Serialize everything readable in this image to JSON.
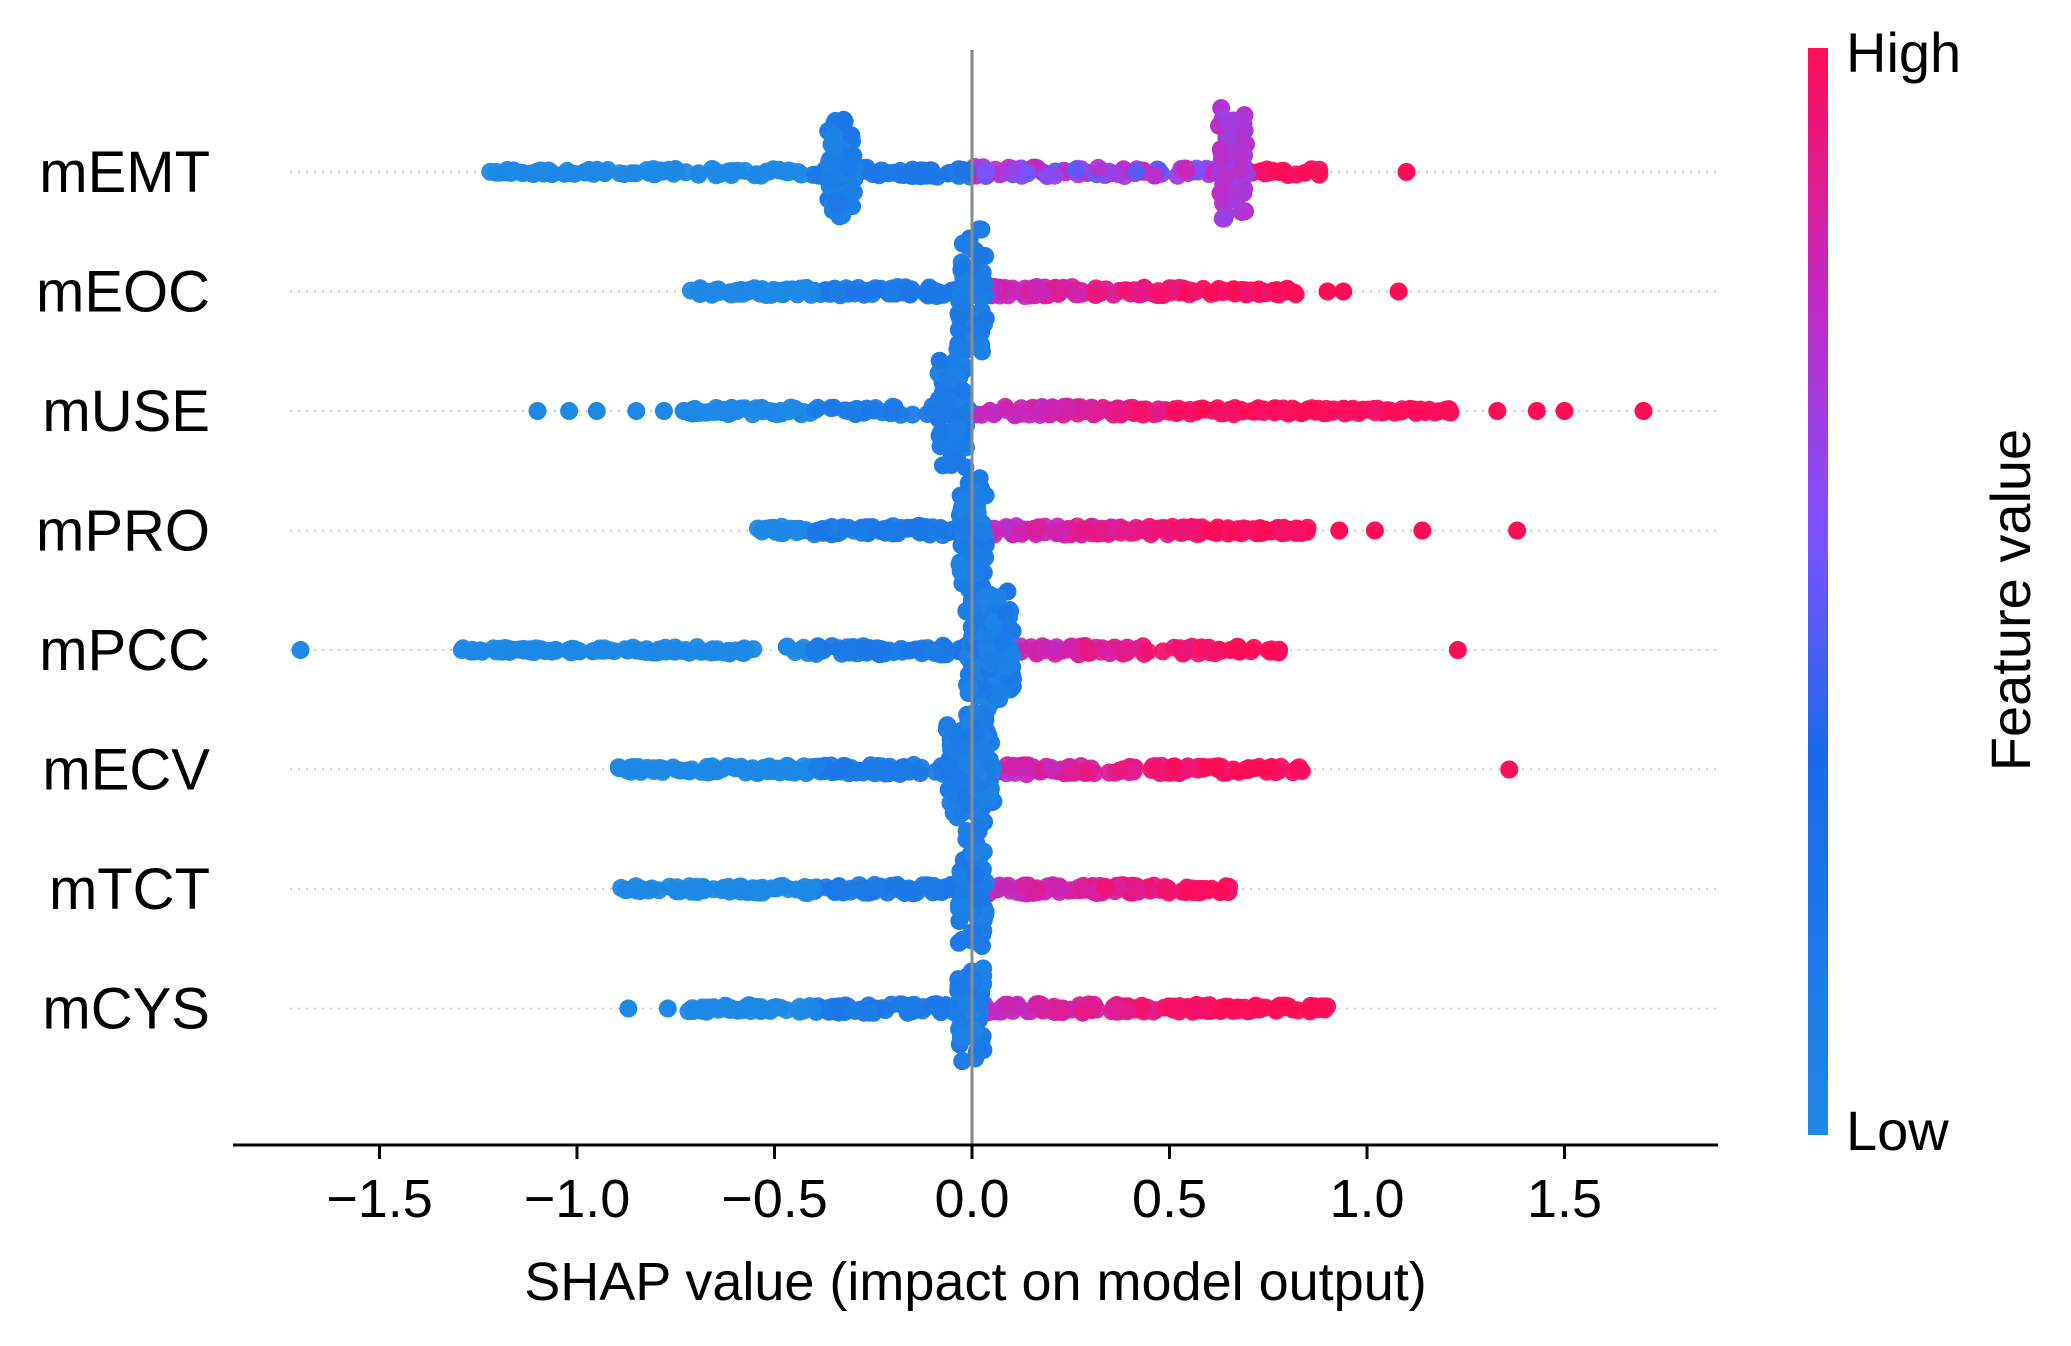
{
  "chart_data": {
    "type": "scatter",
    "subtype": "shap-beeswarm-summary",
    "xlabel": "SHAP value (impact on model output)",
    "xlim": [
      -1.88,
      1.88
    ],
    "xticks": [
      -1.5,
      -1.0,
      -0.5,
      0.0,
      0.5,
      1.0,
      1.5
    ],
    "xtick_labels": [
      "−1.5",
      "−1.0",
      "−0.5",
      "0.0",
      "0.5",
      "1.0",
      "1.5"
    ],
    "colorbar": {
      "title": "Feature value",
      "high_label": "High",
      "low_label": "Low",
      "low_color": "#1e88e5",
      "high_color": "#ff0d57",
      "mid_color": "#7c52ff"
    },
    "features": [
      {
        "name": "mEMT",
        "min": -1.22,
        "max": 0.9,
        "spikes": [
          [
            -0.33,
            55
          ],
          [
            0.66,
            72
          ]
        ],
        "sparse": [
          [
            1.1,
            1.0
          ]
        ],
        "sign": 1,
        "purple_mid": true
      },
      {
        "name": "mEOC",
        "min": -0.72,
        "max": 0.82,
        "spikes": [
          [
            0.0,
            80
          ]
        ],
        "sparse": [
          [
            0.9,
            1.0
          ],
          [
            0.94,
            1.0
          ],
          [
            1.08,
            1.0
          ]
        ],
        "sign": 1,
        "purple_mid": false
      },
      {
        "name": "mUSE",
        "min": -0.72,
        "max": 1.22,
        "spikes": [
          [
            -0.05,
            70
          ]
        ],
        "sparse": [
          [
            -1.1,
            0.0
          ],
          [
            -1.02,
            0.0
          ],
          [
            -0.95,
            0.0
          ],
          [
            -0.85,
            0.0
          ],
          [
            -0.78,
            0.0
          ],
          [
            -0.73,
            0.0
          ],
          [
            1.33,
            1.0
          ],
          [
            1.43,
            1.0
          ],
          [
            1.5,
            1.0
          ],
          [
            1.7,
            1.0
          ]
        ],
        "sign": 1,
        "purple_mid": false
      },
      {
        "name": "mPRO",
        "min": -0.55,
        "max": 0.85,
        "spikes": [
          [
            0.0,
            75
          ]
        ],
        "sparse": [
          [
            0.93,
            1.0
          ],
          [
            1.02,
            1.0
          ],
          [
            1.14,
            1.0
          ],
          [
            1.38,
            1.0
          ]
        ],
        "sign": 1,
        "purple_mid": false
      },
      {
        "name": "mPCC",
        "min": -1.3,
        "max": 0.78,
        "spikes": [
          [
            0.02,
            75
          ],
          [
            0.07,
            60
          ]
        ],
        "sparse": [
          [
            -1.7,
            0.0
          ],
          [
            1.23,
            1.0
          ]
        ],
        "sign": 1,
        "purple_mid": false
      },
      {
        "name": "mECV",
        "min": -0.9,
        "max": 0.85,
        "spikes": [
          [
            -0.03,
            60
          ],
          [
            0.02,
            65
          ]
        ],
        "sparse": [
          [
            1.36,
            1.0
          ]
        ],
        "sign": 1,
        "purple_mid": false
      },
      {
        "name": "mTCT",
        "min": -0.9,
        "max": 0.66,
        "spikes": [
          [
            0.0,
            70
          ]
        ],
        "sparse": [],
        "sign": 1,
        "purple_mid": false
      },
      {
        "name": "mCYS",
        "min": -0.72,
        "max": 0.9,
        "spikes": [
          [
            0.0,
            60
          ]
        ],
        "sparse": [
          [
            -0.87,
            0.0
          ],
          [
            -0.77,
            0.0
          ]
        ],
        "sign": 1,
        "purple_mid": false
      }
    ]
  }
}
